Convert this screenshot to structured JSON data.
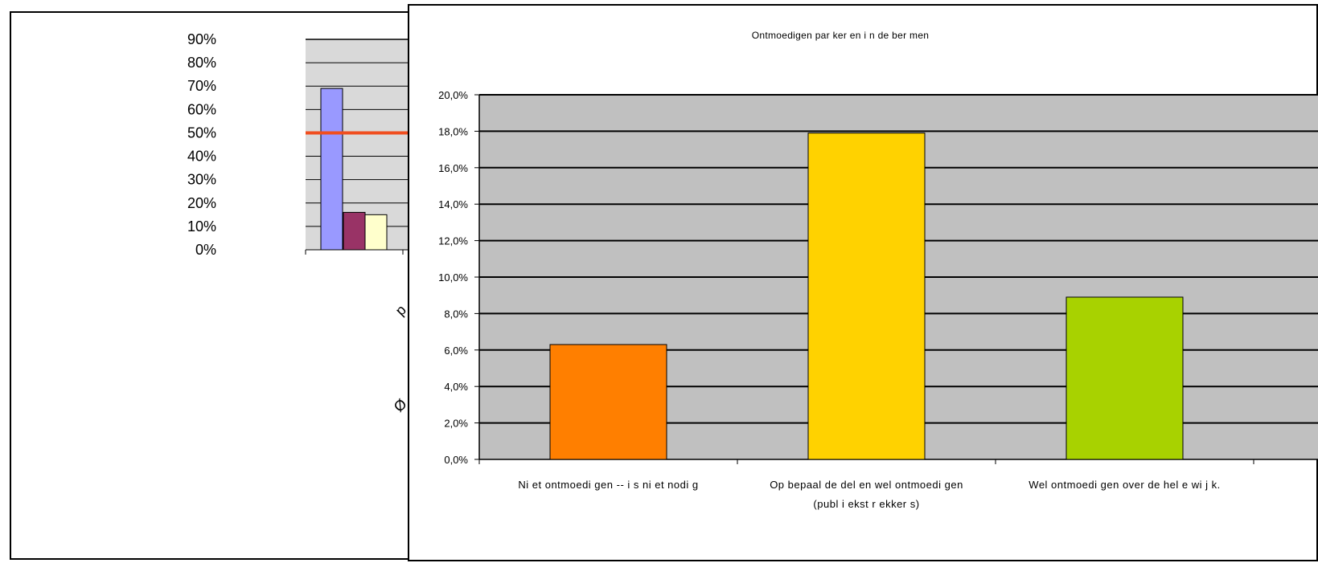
{
  "chart_data": [
    {
      "type": "bar",
      "title": "",
      "xlabel": "",
      "ylabel": "",
      "ylim": [
        0,
        90
      ],
      "y_tick_labels": [
        "0%",
        "10%",
        "20%",
        "30%",
        "40%",
        "50%",
        "60%",
        "70%",
        "80%",
        "90%"
      ],
      "y_tick_values": [
        0,
        10,
        20,
        30,
        40,
        50,
        60,
        70,
        80,
        90
      ],
      "values": [
        69,
        16,
        15
      ],
      "colors": [
        "#9999ff",
        "#993366",
        "#ffffcc"
      ],
      "reference_line": {
        "value": 50,
        "color": "#f04e1f"
      },
      "plot_background": "#d9d9d9",
      "grid": true,
      "partial_category_glyphs": [
        "p",
        "Ø"
      ],
      "partially_hidden": true
    },
    {
      "type": "bar",
      "title": "Ontmoedigen par ker en i n de ber men",
      "xlabel": "",
      "ylabel": "",
      "ylim": [
        0,
        20
      ],
      "y_tick_labels": [
        "0,0%",
        "2,0%",
        "4,0%",
        "6,0%",
        "8,0%",
        "10,0%",
        "12,0%",
        "14,0%",
        "16,0%",
        "18,0%",
        "20,0%"
      ],
      "y_tick_values": [
        0,
        2,
        4,
        6,
        8,
        10,
        12,
        14,
        16,
        18,
        20
      ],
      "categories": [
        [
          "Ni et ontmoedi gen -- i s ni et nodi g"
        ],
        [
          "Op bepaal de del en wel ontmoedi gen",
          "(publ i ekst r ekker s)"
        ],
        [
          "Wel ontmoedi gen over de hel e wi j k."
        ]
      ],
      "values": [
        6.3,
        17.9,
        8.9
      ],
      "colors": [
        "#ff7f00",
        "#ffd200",
        "#a8d200"
      ],
      "plot_background": "#c0c0c0",
      "grid": true,
      "legend": "none"
    }
  ]
}
